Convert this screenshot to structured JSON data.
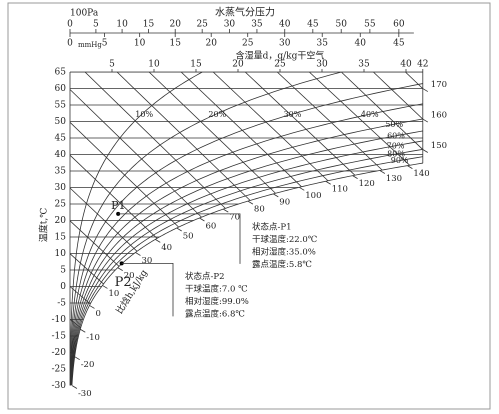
{
  "top_scale": {
    "unit": "100Pa",
    "title": "水蒸气分压力",
    "pressure_ticks": [
      0,
      5,
      10,
      15,
      20,
      25,
      30,
      35,
      40,
      45,
      50,
      55,
      60
    ],
    "mmhg_unit": "mmHg",
    "mmhg_ticks": [
      0,
      5,
      10,
      15,
      20,
      25,
      30,
      35,
      40,
      45
    ]
  },
  "plot": {
    "d_title": "含湿量d，g/kg干空气",
    "d_ticks": [
      5,
      10,
      15,
      20,
      25,
      30,
      35,
      40,
      42
    ],
    "temp_label": "温度t,℃",
    "temp_ticks": [
      65,
      60,
      55,
      50,
      45,
      40,
      35,
      30,
      25,
      20,
      15,
      10,
      5,
      0,
      -5,
      -10,
      -15,
      -20,
      -25,
      -30
    ],
    "rh_curves": [
      {
        "value": 10,
        "label": "10%"
      },
      {
        "value": 20,
        "label": "20%"
      },
      {
        "value": 30,
        "label": "30%"
      },
      {
        "value": 40,
        "label": "40%"
      },
      {
        "value": 50,
        "label": "50%"
      },
      {
        "value": 60,
        "label": "60%"
      },
      {
        "value": 70,
        "label": "70%"
      },
      {
        "value": 80,
        "label": "80%"
      },
      {
        "value": 90,
        "label": "90%"
      }
    ],
    "enthalpy_label": "比焓h,kJ/kg",
    "enthalpy_ticks": [
      170,
      160,
      150,
      140,
      130,
      120,
      110,
      100,
      90,
      80,
      70,
      60,
      50,
      40,
      30,
      20,
      10,
      0,
      -10,
      -20,
      -30
    ]
  },
  "points": [
    {
      "label": "P1",
      "title": "状态点-P1",
      "dry_bulb": {
        "value": 22.0,
        "label": "干球温度:22.0℃"
      },
      "rh": {
        "value": 35.0,
        "label": "相对湿度:35.0%"
      },
      "dew_point": {
        "value": 5.8,
        "label": "露点温度:5.8℃"
      }
    },
    {
      "label": "P2",
      "title": "状态点-P2",
      "dry_bulb": {
        "value": 7.0,
        "label": "干球温度:7.0 ℃"
      },
      "rh": {
        "value": 99.0,
        "label": "相对湿度:99.0%"
      },
      "dew_point": {
        "value": 6.8,
        "label": "露点温度:6.8℃"
      }
    }
  ]
}
